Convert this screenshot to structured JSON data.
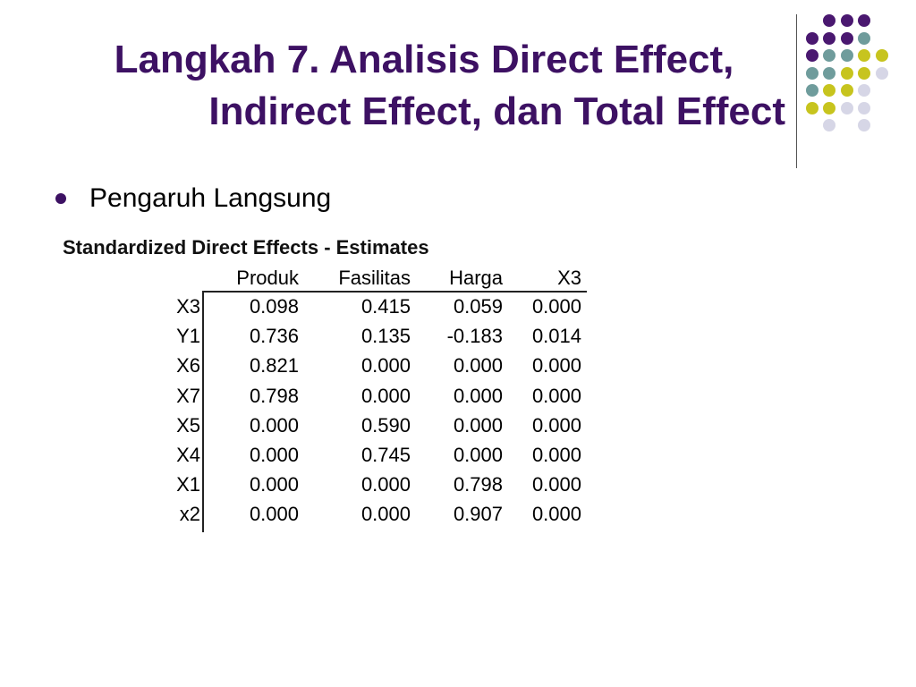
{
  "slide": {
    "title_line1": "Langkah 7. Analisis Direct Effect,",
    "title_line2": "Indirect Effect, dan Total Effect",
    "bullet": "Pengaruh Langsung"
  },
  "colors": {
    "title": "#3d1163",
    "purple": "#4a1870",
    "teal": "#6f9c9c",
    "yellow": "#c7c41e",
    "lavender": "#d6d6e6"
  },
  "table": {
    "title": "Standardized Direct Effects - Estimates",
    "columns": [
      "Produk",
      "Fasilitas",
      "Harga",
      "X3"
    ],
    "rows": [
      {
        "label": "X3",
        "values": [
          "0.098",
          "0.415",
          "0.059",
          "0.000"
        ]
      },
      {
        "label": "Y1",
        "values": [
          "0.736",
          "0.135",
          "-0.183",
          "0.014"
        ]
      },
      {
        "label": "X6",
        "values": [
          "0.821",
          "0.000",
          "0.000",
          "0.000"
        ]
      },
      {
        "label": "X7",
        "values": [
          "0.798",
          "0.000",
          "0.000",
          "0.000"
        ]
      },
      {
        "label": "X5",
        "values": [
          "0.000",
          "0.590",
          "0.000",
          "0.000"
        ]
      },
      {
        "label": "X4",
        "values": [
          "0.000",
          "0.745",
          "0.000",
          "0.000"
        ]
      },
      {
        "label": "X1",
        "values": [
          "0.000",
          "0.000",
          "0.798",
          "0.000"
        ]
      },
      {
        "label": "x2",
        "values": [
          "0.000",
          "0.000",
          "0.907",
          "0.000"
        ]
      }
    ]
  }
}
